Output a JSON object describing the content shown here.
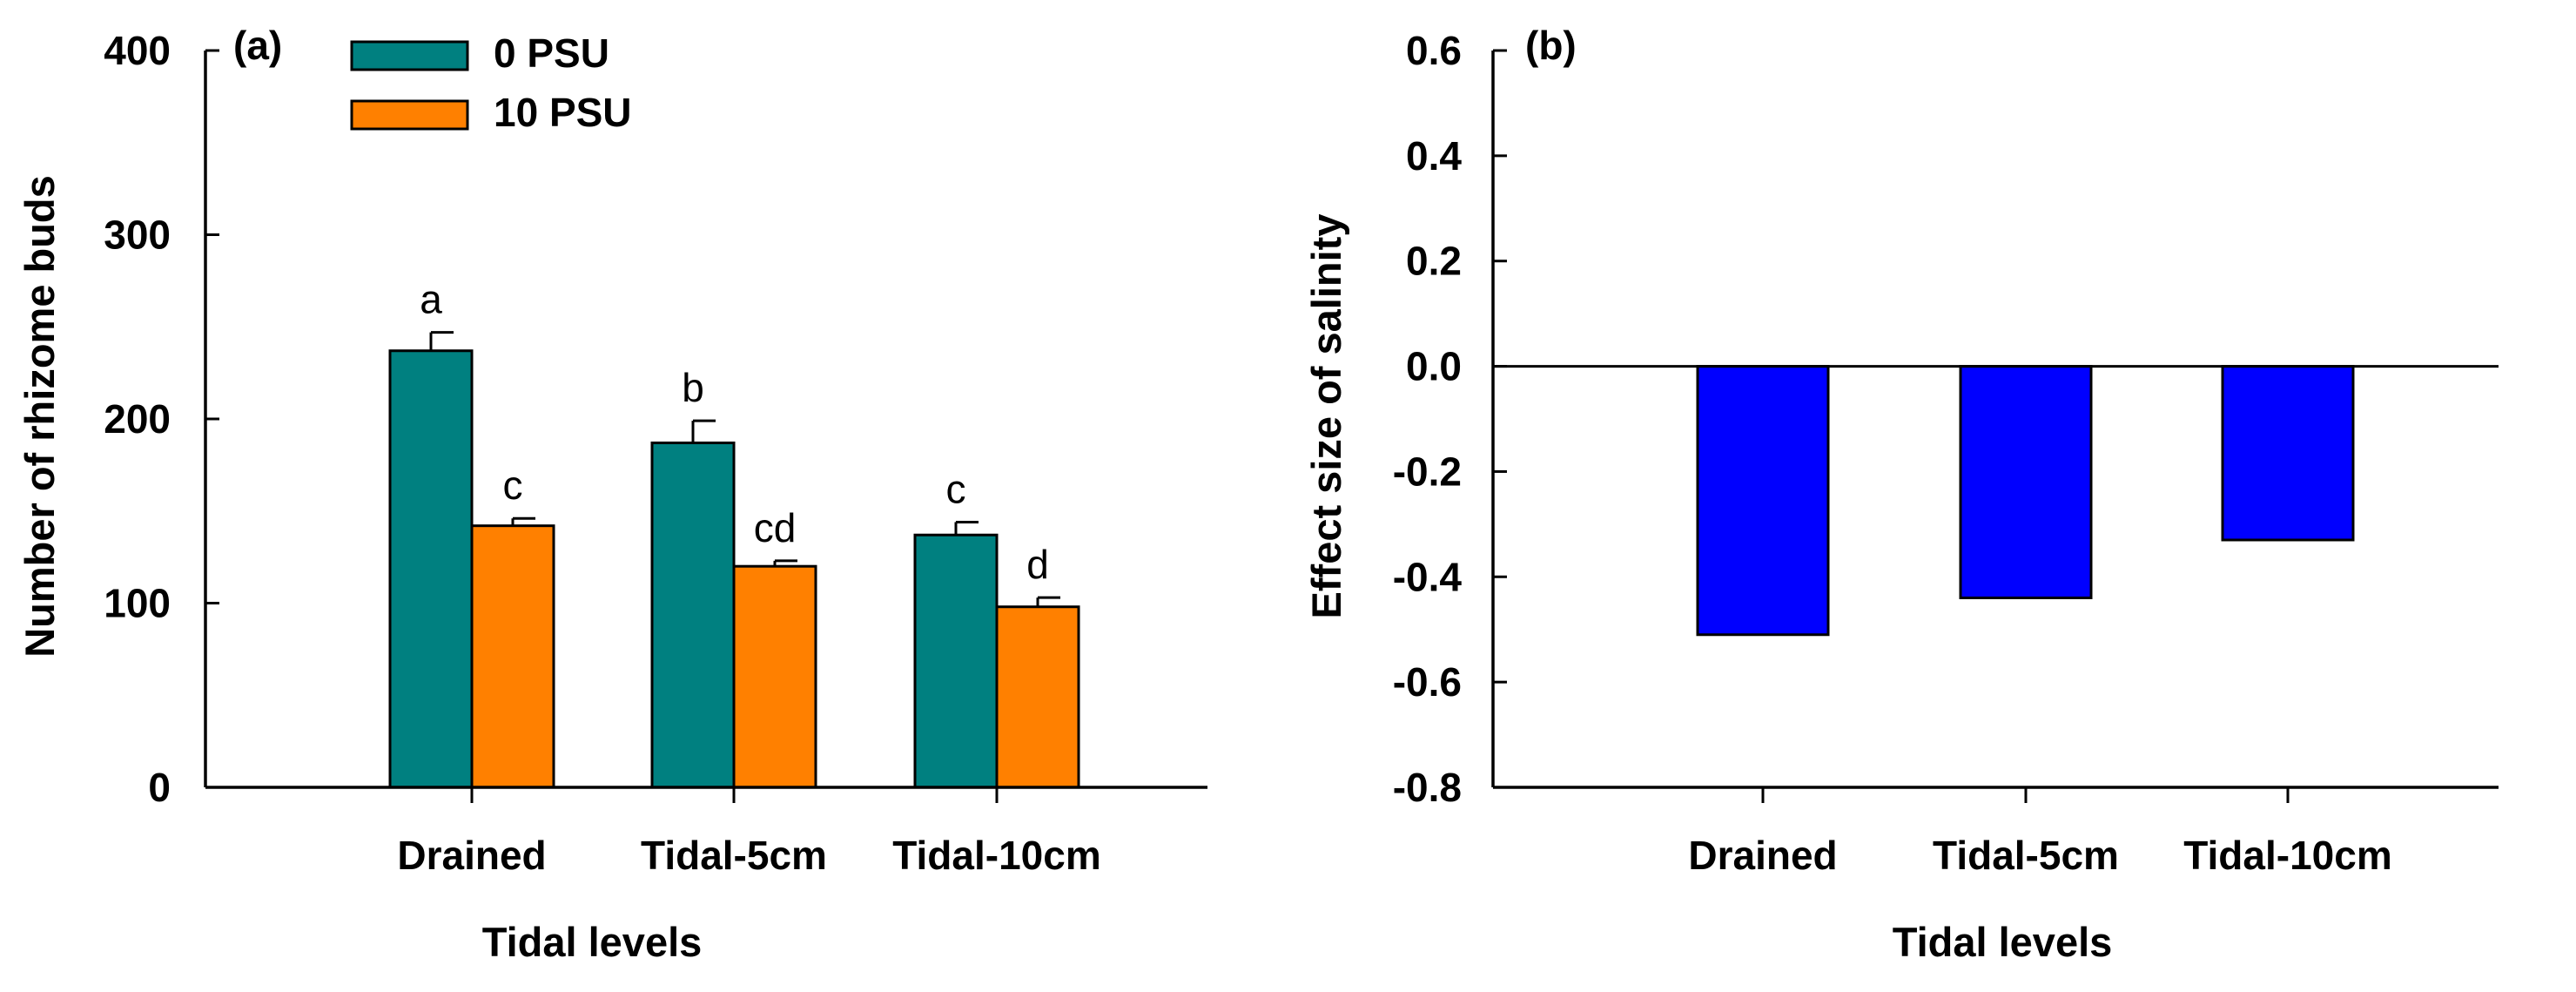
{
  "chart_data": [
    {
      "type": "bar",
      "panel_label": "(a)",
      "categories": [
        "Drained",
        "Tidal-5cm",
        "Tidal-10cm"
      ],
      "series": [
        {
          "name": "0 PSU",
          "color": "#008080",
          "values": [
            237,
            187,
            137
          ],
          "error": [
            10,
            12,
            7
          ],
          "letters": [
            "a",
            "b",
            "c"
          ]
        },
        {
          "name": "10 PSU",
          "color": "#ff8000",
          "values": [
            142,
            120,
            98
          ],
          "error": [
            4,
            3,
            5
          ],
          "letters": [
            "c",
            "cd",
            "d"
          ]
        }
      ],
      "xlabel": "Tidal levels",
      "ylabel": "Number of rhizome buds",
      "ylim": [
        0,
        400
      ],
      "yticks": [
        0,
        100,
        200,
        300,
        400
      ],
      "legend": "top-left",
      "grid": false
    },
    {
      "type": "bar",
      "panel_label": "(b)",
      "categories": [
        "Drained",
        "Tidal-5cm",
        "Tidal-10cm"
      ],
      "series": [
        {
          "color": "#0000ff",
          "values": [
            -0.51,
            -0.44,
            -0.33
          ]
        }
      ],
      "xlabel": "Tidal levels",
      "ylabel": "Effect size of salinity",
      "ylim": [
        -0.8,
        0.6
      ],
      "yticks": [
        -0.8,
        -0.6,
        -0.4,
        -0.2,
        0.0,
        0.2,
        0.4,
        0.6
      ],
      "ytick_labels": [
        "-0.8",
        "-0.6",
        "-0.4",
        "-0.2",
        "0.0",
        "0.2",
        "0.4",
        "0.6"
      ],
      "zero_line": true,
      "grid": false
    }
  ]
}
